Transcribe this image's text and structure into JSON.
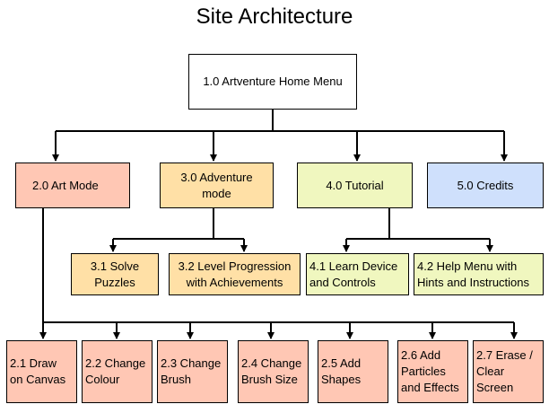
{
  "title": "Site Architecture",
  "colors": {
    "home": "#ffffff",
    "art": "#ffc7b4",
    "adventure": "#ffe0a6",
    "tutorial": "#f0f7bf",
    "credits": "#cfe0fc",
    "lines": "#000000"
  },
  "nodes": {
    "home": "1.0 Artventure Home Menu",
    "art_mode": "2.0 Art Mode",
    "adventure_mode": "3.0 Adventure\nmode",
    "tutorial": "4.0 Tutorial",
    "credits": "5.0 Credits",
    "solve_puzzles": "3.1 Solve\nPuzzles",
    "level_progression": "3.2 Level Progression\nwith Achievements",
    "learn_device": "4.1 Learn Device\nand Controls",
    "help_menu": "4.2 Help Menu with\nHints and Instructions",
    "draw_canvas": "2.1 Draw\non Canvas",
    "change_colour": "2.2 Change\nColour",
    "change_brush": "2.3 Change\nBrush",
    "change_brush_size": "2.4 Change\nBrush Size",
    "add_shapes": "2.5 Add\nShapes",
    "add_particles": "2.6 Add\nParticles\nand Effects",
    "erase_clear": "2.7 Erase /\nClear\nScreen"
  }
}
